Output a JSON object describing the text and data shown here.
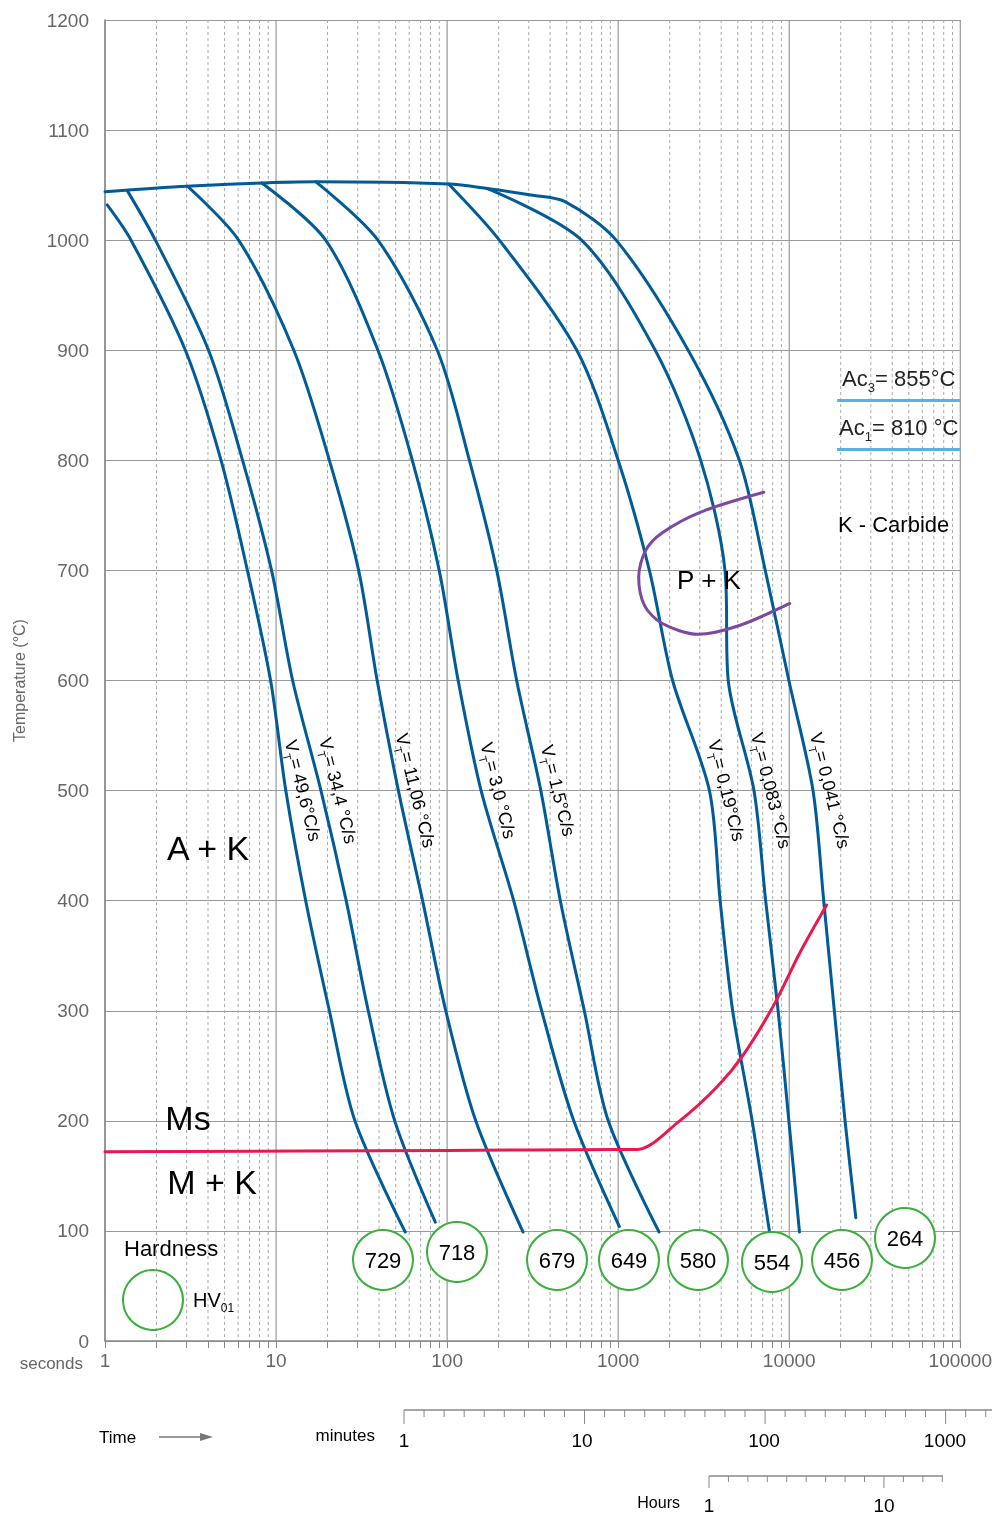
{
  "chart_data": {
    "type": "line",
    "xlabel": "seconds",
    "ylabel": "Temperature (°C)",
    "log": "x",
    "grid": true,
    "marker": "none",
    "line_style": "solid",
    "xlim": [
      1,
      100000
    ],
    "xticks": [
      1,
      {
        "value": 2,
        "label": null
      },
      {
        "value": 3,
        "label": null
      },
      {
        "value": 4,
        "label": null
      },
      {
        "value": 5,
        "label": null
      },
      {
        "value": 6,
        "label": null
      },
      {
        "value": 7,
        "label": null
      },
      {
        "value": 8,
        "label": null
      },
      {
        "value": 9,
        "label": null
      },
      10,
      {
        "value": 20,
        "label": null
      },
      {
        "value": 30,
        "label": null
      },
      {
        "value": 40,
        "label": null
      },
      {
        "value": 50,
        "label": null
      },
      {
        "value": 60,
        "label": null
      },
      {
        "value": 70,
        "label": null
      },
      {
        "value": 80,
        "label": null
      },
      {
        "value": 90,
        "label": null
      },
      100,
      {
        "value": 200,
        "label": null
      },
      {
        "value": 300,
        "label": null
      },
      {
        "value": 400,
        "label": null
      },
      {
        "value": 500,
        "label": null
      },
      {
        "value": 600,
        "label": null
      },
      {
        "value": 700,
        "label": null
      },
      {
        "value": 800,
        "label": null
      },
      {
        "value": 900,
        "label": null
      },
      1000,
      {
        "value": 2000,
        "label": null
      },
      {
        "value": 3000,
        "label": null
      },
      {
        "value": 4000,
        "label": null
      },
      {
        "value": 5000,
        "label": null
      },
      {
        "value": 6000,
        "label": null
      },
      {
        "value": 7000,
        "label": null
      },
      {
        "value": 8000,
        "label": null
      },
      {
        "value": 9000,
        "label": null
      },
      10000,
      {
        "value": 20000,
        "label": null
      },
      {
        "value": 30000,
        "label": null
      },
      {
        "value": 40000,
        "label": null
      },
      {
        "value": 50000,
        "label": null
      },
      {
        "value": 60000,
        "label": null
      },
      {
        "value": 70000,
        "label": null
      },
      {
        "value": 80000,
        "label": null
      },
      {
        "value": 90000,
        "label": null
      },
      100000
    ],
    "ylim": [
      0,
      1200
    ],
    "yticks": [
      0,
      100,
      200,
      300,
      400,
      500,
      600,
      700,
      800,
      900,
      1000,
      1100,
      1200
    ],
    "series": [
      {
        "name": "V$_{T}$= 49,6°C/s",
        "color": "#005b96",
        "x": [
          1.03,
          1.42,
          2.95,
          4.77,
          6.8,
          9.29,
          11.4,
          14.9,
          20.5,
          28.9,
          56.9
        ],
        "values": [
          1032,
          1000,
          900,
          800,
          700,
          600,
          500,
          400,
          300,
          200,
          99
        ]
      },
      {
        "name": "V$_{T}$= 34,4 °C/s",
        "color": "#005b96",
        "x": [
          1.35,
          1.97,
          4.03,
          6.37,
          9.41,
          12.5,
          18.3,
          25.7,
          34.6,
          49.4,
          85.3
        ],
        "values": [
          1045,
          1000,
          900,
          800,
          700,
          600,
          500,
          400,
          300,
          200,
          108
        ]
      },
      {
        "name": "V$_{T}$= 11,06 °C/s",
        "color": "#005b96",
        "x": [
          3.03,
          6.04,
          12.7,
          20.5,
          30.4,
          39,
          51.9,
          71.9,
          98.2,
          147,
          278
        ],
        "values": [
          1049,
          1000,
          900,
          800,
          700,
          600,
          500,
          400,
          300,
          200,
          99
        ]
      },
      {
        "name": "V$_{T}$= 3,0 °C/s",
        "color": "#005b96",
        "x": [
          8.26,
          19.5,
          39.4,
          62.6,
          89.9,
          116,
          158,
          245,
          357,
          550,
          1016
        ],
        "values": [
          1052,
          1000,
          900,
          800,
          700,
          600,
          500,
          400,
          300,
          200,
          104
        ]
      },
      {
        "name": "V$_{T}$= 1,5°C/s",
        "color": "#005b96",
        "x": [
          17.1,
          39.4,
          87.6,
          135,
          195,
          255,
          353,
          459,
          634,
          875,
          1734
        ],
        "values": [
          1053,
          1000,
          900,
          800,
          700,
          600,
          500,
          400,
          300,
          200,
          99
        ]
      },
      {
        "name": "V$_{T}$= 0,19°C/s",
        "color": "#005b96",
        "x": [
          102,
          202,
          573,
          1000,
          1522,
          2080,
          3415,
          3945,
          4670,
          6070,
          7670
        ],
        "values": [
          1051,
          1000,
          900,
          800,
          700,
          600,
          500,
          400,
          300,
          200,
          99
        ]
      },
      {
        "name": "V$_{T}$= 0,083 °C/s",
        "color": "#005b96",
        "x": [
          171,
          611,
          1647,
          3037,
          4210,
          4400,
          6220,
          7280,
          8610,
          9950,
          11480
        ],
        "values": [
          1047,
          1000,
          900,
          800,
          700,
          600,
          500,
          400,
          300,
          200,
          99
        ]
      },
      {
        "name": "V$_{T}$= 0,041 °C/s",
        "color": "#005b96",
        "x": [
          1,
          3.03,
          17.1,
          102,
          171,
          309,
          489,
          973,
          2566,
          5110,
          7240,
          9950,
          13770,
          15900,
          18350,
          21200,
          24500
        ],
        "values": [
          1044,
          1049,
          1053,
          1051,
          1047,
          1041,
          1035,
          1000,
          900,
          800,
          700,
          600,
          500,
          400,
          300,
          200,
          112
        ]
      },
      {
        "color": "#e8194f",
        "x": [
          1,
          100,
          1000,
          1300,
          2250,
          3790,
          5390,
          8180,
          11480,
          16550
        ],
        "values": [
          172,
          173,
          174,
          174,
          199,
          231,
          260,
          306,
          352,
          396
        ]
      },
      {
        "color": "#7b4a9e",
        "x": [
          7090,
          3035,
          1803,
          1445,
          1318,
          1426,
          1800,
          2922,
          5115,
          10070
        ],
        "values": [
          771,
          753,
          734,
          718,
          694,
          668,
          652,
          642,
          650,
          670
        ]
      }
    ],
    "ref_lines": [
      {
        "axis": "y",
        "value": 855,
        "label": "Ac$_{3}$= 855°C",
        "color": "#5ab1e4"
      },
      {
        "axis": "y",
        "value": 810,
        "label": "Ac$_{1}$= 810 °C",
        "color": "#5ab1e4"
      }
    ],
    "annotations": [
      "A + K",
      "Ms",
      "M + K",
      "P + K",
      "K - Carbide",
      "729",
      "718",
      "679",
      "649",
      "580",
      "554",
      "456",
      "264",
      "Hardness",
      "HV$_{01}$",
      "Time",
      "minutes",
      "1",
      "10",
      "100",
      "1000",
      "Hours",
      "1",
      "10"
    ]
  }
}
